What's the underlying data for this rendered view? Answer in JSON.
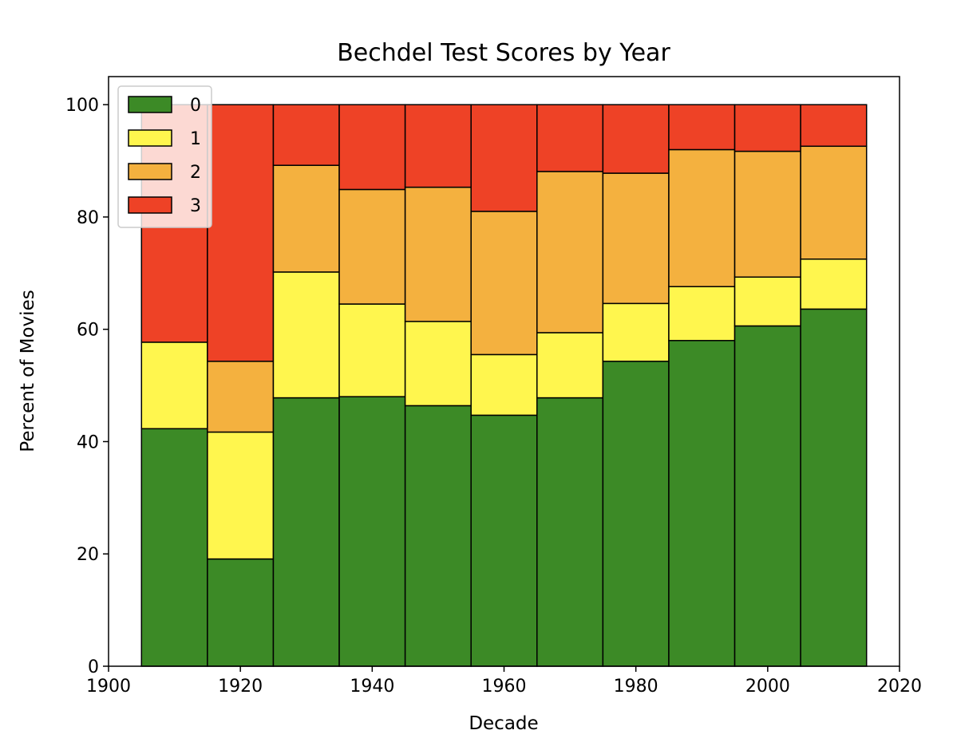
{
  "chart_data": {
    "type": "bar",
    "stacked": true,
    "title": "Bechdel Test Scores by Year",
    "xlabel": "Decade",
    "ylabel": "Percent of Movies",
    "xlim": [
      1900,
      2020
    ],
    "ylim": [
      0,
      100
    ],
    "xticks": [
      1900,
      1920,
      1940,
      1960,
      1980,
      2000,
      2020
    ],
    "yticks": [
      0,
      20,
      40,
      60,
      80,
      100
    ],
    "bar_width": 10,
    "categories": [
      1910,
      1920,
      1930,
      1940,
      1950,
      1960,
      1970,
      1980,
      1990,
      2000,
      2010
    ],
    "series": [
      {
        "name": "0",
        "color": "#3c8a26",
        "values": [
          42.3,
          19.1,
          47.8,
          48.0,
          46.4,
          44.7,
          47.8,
          54.3,
          58.0,
          60.6,
          63.6
        ]
      },
      {
        "name": "1",
        "color": "#fff64e",
        "values": [
          15.4,
          22.6,
          22.4,
          16.5,
          15.0,
          10.8,
          11.6,
          10.3,
          9.6,
          8.7,
          8.9
        ]
      },
      {
        "name": "2",
        "color": "#f4b13f",
        "values": [
          0.0,
          12.6,
          19.0,
          20.4,
          23.9,
          25.5,
          28.7,
          23.2,
          24.4,
          22.4,
          20.1
        ]
      },
      {
        "name": "3",
        "color": "#ee4226",
        "values": [
          42.3,
          45.7,
          10.8,
          15.1,
          14.7,
          19.0,
          11.9,
          12.2,
          8.0,
          8.3,
          7.4
        ]
      }
    ],
    "legend_position": "top-left",
    "grid": false
  }
}
